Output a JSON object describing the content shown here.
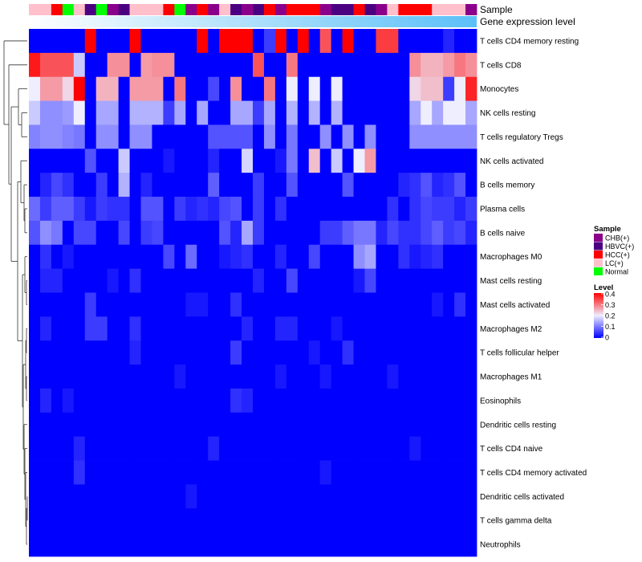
{
  "chart_data": {
    "type": "heatmap",
    "title": "",
    "annotation_titles": {
      "sample": "Sample",
      "expression": "Gene expression level"
    },
    "rows": [
      "T cells CD4 memory resting",
      "T cells CD8",
      "Monocytes",
      "NK cells resting",
      "T cells regulatory  Tregs",
      "NK cells activated",
      "B cells memory",
      "Plasma cells",
      "B cells naive",
      "Macrophages M0",
      "Mast cells resting",
      "Mast cells activated",
      "Macrophages M2",
      "T cells follicular helper",
      "Macrophages M1",
      "Eosinophils",
      "Dendritic cells resting",
      "T cells CD4 naive",
      "T cells CD4 memory activated",
      "Dendritic cells activated",
      "T cells gamma delta",
      "Neutrophils"
    ],
    "sample_groups": [
      "LC(+)",
      "LC(+)",
      "HCC(+)",
      "Normal",
      "LC(+)",
      "HBVC(+)",
      "Normal",
      "CHB(+)",
      "HBVC(+)",
      "LC(+)",
      "LC(+)",
      "LC(+)",
      "HCC(+)",
      "Normal",
      "CHB(+)",
      "HCC(+)",
      "CHB(+)",
      "LC(+)",
      "HBVC(+)",
      "CHB(+)",
      "HBVC(+)",
      "HCC(+)",
      "CHB(+)",
      "HCC(+)",
      "HCC(+)",
      "HCC(+)",
      "CHB(+)",
      "HBVC(+)",
      "HBVC(+)",
      "HCC(+)",
      "HBVC(+)",
      "CHB(+)",
      "LC(+)",
      "HCC(+)",
      "HCC(+)",
      "HCC(+)",
      "LC(+)",
      "LC(+)",
      "LC(+)",
      "CHB(+)"
    ],
    "values": [
      [
        0.0,
        0.0,
        0.0,
        0.0,
        0.0,
        0.4,
        0.0,
        0.0,
        0.0,
        0.4,
        0.0,
        0.0,
        0.0,
        0.0,
        0.0,
        0.4,
        0.0,
        0.4,
        0.4,
        0.4,
        0.0,
        0.05,
        0.4,
        0.0,
        0.4,
        0.0,
        0.33,
        0.0,
        0.4,
        0.0,
        0.0,
        0.35,
        0.35,
        0.0,
        0.0,
        0.0,
        0.0,
        0.03,
        0.0,
        0.0
      ],
      [
        0.38,
        0.33,
        0.33,
        0.33,
        0.17,
        0.0,
        0.0,
        0.28,
        0.28,
        0.0,
        0.27,
        0.28,
        0.28,
        0.0,
        0.0,
        0.0,
        0.0,
        0.0,
        0.0,
        0.0,
        0.33,
        0.0,
        0.0,
        0.3,
        0.0,
        0.0,
        0.0,
        0.0,
        0.0,
        0.0,
        0.0,
        0.0,
        0.0,
        0.0,
        0.28,
        0.25,
        0.25,
        0.27,
        0.3,
        0.28
      ],
      [
        0.2,
        0.27,
        0.27,
        0.22,
        0.4,
        0.0,
        0.25,
        0.25,
        0.0,
        0.27,
        0.27,
        0.27,
        0.0,
        0.3,
        0.0,
        0.0,
        0.06,
        0.0,
        0.28,
        0.0,
        0.0,
        0.3,
        0.0,
        0.2,
        0.0,
        0.2,
        0.0,
        0.2,
        0.0,
        0.0,
        0.0,
        0.0,
        0.0,
        0.0,
        0.22,
        0.24,
        0.24,
        0.05,
        0.2,
        0.37
      ],
      [
        0.17,
        0.12,
        0.12,
        0.13,
        0.2,
        0.0,
        0.14,
        0.14,
        0.0,
        0.15,
        0.15,
        0.15,
        0.05,
        0.14,
        0.0,
        0.14,
        0.0,
        0.0,
        0.14,
        0.14,
        0.05,
        0.14,
        0.0,
        0.15,
        0.0,
        0.15,
        0.0,
        0.15,
        0.0,
        0.0,
        0.0,
        0.0,
        0.0,
        0.0,
        0.14,
        0.2,
        0.14,
        0.2,
        0.2,
        0.14
      ],
      [
        0.11,
        0.12,
        0.12,
        0.11,
        0.1,
        0.0,
        0.12,
        0.12,
        0.0,
        0.12,
        0.12,
        0.0,
        0.0,
        0.0,
        0.0,
        0.0,
        0.07,
        0.07,
        0.07,
        0.07,
        0.0,
        0.12,
        0.0,
        0.1,
        0.0,
        0.0,
        0.12,
        0.0,
        0.12,
        0.0,
        0.12,
        0.0,
        0.0,
        0.0,
        0.12,
        0.12,
        0.12,
        0.12,
        0.12,
        0.12
      ],
      [
        0.0,
        0.0,
        0.0,
        0.0,
        0.0,
        0.07,
        0.0,
        0.0,
        0.17,
        0.0,
        0.0,
        0.0,
        0.02,
        0.0,
        0.0,
        0.0,
        0.03,
        0.0,
        0.0,
        0.18,
        0.0,
        0.0,
        0.02,
        0.1,
        0.0,
        0.24,
        0.0,
        0.17,
        0.0,
        0.2,
        0.27,
        0.0,
        0.0,
        0.0,
        0.0,
        0.0,
        0.0,
        0.0,
        0.0,
        0.0
      ],
      [
        0.0,
        0.03,
        0.06,
        0.04,
        0.0,
        0.0,
        0.05,
        0.0,
        0.15,
        0.0,
        0.03,
        0.0,
        0.0,
        0.0,
        0.0,
        0.0,
        0.08,
        0.0,
        0.0,
        0.0,
        0.05,
        0.0,
        0.0,
        0.07,
        0.0,
        0.0,
        0.0,
        0.0,
        0.07,
        0.0,
        0.0,
        0.0,
        0.0,
        0.03,
        0.04,
        0.07,
        0.03,
        0.04,
        0.07,
        0.0
      ],
      [
        0.09,
        0.05,
        0.08,
        0.08,
        0.05,
        0.02,
        0.05,
        0.04,
        0.04,
        0.0,
        0.07,
        0.07,
        0.0,
        0.05,
        0.03,
        0.04,
        0.03,
        0.06,
        0.07,
        0.0,
        0.05,
        0.0,
        0.04,
        0.0,
        0.0,
        0.0,
        0.0,
        0.0,
        0.0,
        0.0,
        0.0,
        0.0,
        0.04,
        0.0,
        0.04,
        0.06,
        0.05,
        0.05,
        0.03,
        0.05
      ],
      [
        0.07,
        0.12,
        0.1,
        0.0,
        0.06,
        0.06,
        0.0,
        0.0,
        0.06,
        0.0,
        0.05,
        0.06,
        0.0,
        0.0,
        0.0,
        0.0,
        0.0,
        0.07,
        0.03,
        0.14,
        0.05,
        0.0,
        0.0,
        0.0,
        0.0,
        0.0,
        0.05,
        0.05,
        0.08,
        0.1,
        0.1,
        0.03,
        0.06,
        0.04,
        0.04,
        0.06,
        0.08,
        0.05,
        0.06,
        0.03
      ],
      [
        0.0,
        0.04,
        0.0,
        0.02,
        0.0,
        0.0,
        0.0,
        0.0,
        0.0,
        0.0,
        0.0,
        0.0,
        0.06,
        0.0,
        0.09,
        0.0,
        0.0,
        0.02,
        0.03,
        0.04,
        0.0,
        0.0,
        0.03,
        0.0,
        0.0,
        0.06,
        0.0,
        0.0,
        0.0,
        0.12,
        0.14,
        0.0,
        0.0,
        0.04,
        0.02,
        0.03,
        0.04,
        0.0,
        0.0,
        0.0
      ],
      [
        0.0,
        0.03,
        0.03,
        0.0,
        0.0,
        0.0,
        0.0,
        0.02,
        0.0,
        0.04,
        0.0,
        0.0,
        0.0,
        0.0,
        0.0,
        0.0,
        0.0,
        0.0,
        0.0,
        0.0,
        0.03,
        0.0,
        0.0,
        0.06,
        0.0,
        0.0,
        0.0,
        0.0,
        0.0,
        0.02,
        0.06,
        0.0,
        0.0,
        0.0,
        0.0,
        0.0,
        0.0,
        0.0,
        0.0,
        0.0
      ],
      [
        0.0,
        0.0,
        0.0,
        0.0,
        0.0,
        0.05,
        0.0,
        0.0,
        0.0,
        0.0,
        0.0,
        0.0,
        0.0,
        0.0,
        0.02,
        0.02,
        0.0,
        0.0,
        0.04,
        0.0,
        0.0,
        0.0,
        0.0,
        0.0,
        0.0,
        0.0,
        0.0,
        0.0,
        0.0,
        0.0,
        0.0,
        0.0,
        0.0,
        0.0,
        0.0,
        0.0,
        0.02,
        0.0,
        0.04,
        0.0
      ],
      [
        0.0,
        0.03,
        0.0,
        0.0,
        0.0,
        0.05,
        0.05,
        0.0,
        0.0,
        0.04,
        0.0,
        0.0,
        0.0,
        0.0,
        0.0,
        0.0,
        0.0,
        0.0,
        0.0,
        0.03,
        0.0,
        0.0,
        0.03,
        0.03,
        0.0,
        0.0,
        0.0,
        0.02,
        0.0,
        0.0,
        0.0,
        0.0,
        0.0,
        0.0,
        0.0,
        0.0,
        0.0,
        0.0,
        0.0,
        0.0
      ],
      [
        0.0,
        0.0,
        0.0,
        0.0,
        0.0,
        0.0,
        0.0,
        0.0,
        0.0,
        0.03,
        0.0,
        0.0,
        0.0,
        0.0,
        0.0,
        0.0,
        0.0,
        0.0,
        0.05,
        0.0,
        0.0,
        0.0,
        0.0,
        0.0,
        0.0,
        0.02,
        0.0,
        0.0,
        0.04,
        0.0,
        0.0,
        0.0,
        0.0,
        0.0,
        0.0,
        0.0,
        0.0,
        0.0,
        0.0,
        0.0
      ],
      [
        0.0,
        0.0,
        0.0,
        0.0,
        0.0,
        0.0,
        0.0,
        0.0,
        0.0,
        0.0,
        0.0,
        0.0,
        0.0,
        0.02,
        0.0,
        0.0,
        0.0,
        0.0,
        0.0,
        0.0,
        0.0,
        0.0,
        0.02,
        0.0,
        0.0,
        0.0,
        0.02,
        0.0,
        0.0,
        0.0,
        0.0,
        0.0,
        0.02,
        0.0,
        0.0,
        0.0,
        0.0,
        0.0,
        0.0,
        0.0
      ],
      [
        0.0,
        0.03,
        0.0,
        0.02,
        0.0,
        0.0,
        0.0,
        0.0,
        0.0,
        0.0,
        0.0,
        0.0,
        0.0,
        0.0,
        0.0,
        0.0,
        0.0,
        0.0,
        0.04,
        0.03,
        0.0,
        0.0,
        0.0,
        0.0,
        0.0,
        0.0,
        0.0,
        0.0,
        0.0,
        0.0,
        0.0,
        0.0,
        0.0,
        0.0,
        0.0,
        0.0,
        0.0,
        0.0,
        0.0,
        0.0
      ],
      [
        0.0,
        0.0,
        0.0,
        0.0,
        0.0,
        0.0,
        0.0,
        0.0,
        0.0,
        0.0,
        0.0,
        0.0,
        0.0,
        0.0,
        0.0,
        0.0,
        0.0,
        0.0,
        0.0,
        0.0,
        0.0,
        0.0,
        0.0,
        0.0,
        0.0,
        0.0,
        0.0,
        0.0,
        0.0,
        0.0,
        0.0,
        0.0,
        0.0,
        0.0,
        0.0,
        0.0,
        0.0,
        0.0,
        0.0,
        0.0
      ],
      [
        0.0,
        0.0,
        0.0,
        0.0,
        0.03,
        0.0,
        0.0,
        0.0,
        0.0,
        0.0,
        0.0,
        0.0,
        0.0,
        0.0,
        0.0,
        0.0,
        0.03,
        0.0,
        0.0,
        0.0,
        0.0,
        0.0,
        0.0,
        0.0,
        0.0,
        0.0,
        0.0,
        0.0,
        0.0,
        0.0,
        0.0,
        0.0,
        0.0,
        0.0,
        0.02,
        0.0,
        0.0,
        0.0,
        0.0,
        0.0
      ],
      [
        0.0,
        0.0,
        0.0,
        0.0,
        0.04,
        0.0,
        0.0,
        0.0,
        0.0,
        0.0,
        0.0,
        0.0,
        0.0,
        0.0,
        0.0,
        0.0,
        0.0,
        0.0,
        0.0,
        0.0,
        0.0,
        0.0,
        0.0,
        0.0,
        0.0,
        0.0,
        0.02,
        0.0,
        0.0,
        0.0,
        0.0,
        0.0,
        0.0,
        0.0,
        0.0,
        0.0,
        0.0,
        0.0,
        0.0,
        0.0
      ],
      [
        0.0,
        0.0,
        0.0,
        0.0,
        0.0,
        0.0,
        0.0,
        0.0,
        0.0,
        0.0,
        0.0,
        0.0,
        0.0,
        0.0,
        0.02,
        0.0,
        0.0,
        0.0,
        0.0,
        0.0,
        0.0,
        0.0,
        0.0,
        0.0,
        0.0,
        0.0,
        0.0,
        0.0,
        0.0,
        0.0,
        0.0,
        0.0,
        0.0,
        0.0,
        0.0,
        0.0,
        0.0,
        0.0,
        0.0,
        0.0
      ],
      [
        0.0,
        0.0,
        0.0,
        0.0,
        0.0,
        0.0,
        0.0,
        0.0,
        0.0,
        0.0,
        0.0,
        0.0,
        0.0,
        0.0,
        0.0,
        0.0,
        0.0,
        0.0,
        0.0,
        0.0,
        0.0,
        0.0,
        0.0,
        0.0,
        0.0,
        0.0,
        0.0,
        0.0,
        0.0,
        0.0,
        0.0,
        0.0,
        0.0,
        0.0,
        0.0,
        0.0,
        0.0,
        0.0,
        0.0,
        0.0
      ],
      [
        0.0,
        0.0,
        0.0,
        0.0,
        0.0,
        0.0,
        0.0,
        0.0,
        0.0,
        0.0,
        0.0,
        0.0,
        0.0,
        0.0,
        0.0,
        0.0,
        0.0,
        0.0,
        0.0,
        0.0,
        0.0,
        0.0,
        0.0,
        0.0,
        0.0,
        0.0,
        0.0,
        0.0,
        0.0,
        0.0,
        0.0,
        0.0,
        0.0,
        0.0,
        0.0,
        0.0,
        0.0,
        0.0,
        0.0,
        0.0
      ]
    ],
    "color_scale": {
      "min": 0,
      "max": 0.4,
      "stops": [
        {
          "value": 0.0,
          "color": "#0000ff"
        },
        {
          "value": 0.2,
          "color": "#eeeeff"
        },
        {
          "value": 0.4,
          "color": "#ff0000"
        }
      ]
    },
    "legend": {
      "sample_title": "Sample",
      "sample_entries": [
        {
          "label": "CHB(+)",
          "color": "#8b008b"
        },
        {
          "label": "HBVC(+)",
          "color": "#4b0082"
        },
        {
          "label": "HCC(+)",
          "color": "#ff0000"
        },
        {
          "label": "LC(+)",
          "color": "#ffc0cb"
        },
        {
          "label": "Normal",
          "color": "#00ff00"
        }
      ],
      "level_title": "Level",
      "level_ticks": [
        "0.4",
        "0.3",
        "0.2",
        "0.1",
        "0"
      ],
      "position": "right"
    },
    "expression_bar_colors": [
      "#ffffff",
      "#5bc0f8"
    ],
    "dendrogram": "left"
  }
}
